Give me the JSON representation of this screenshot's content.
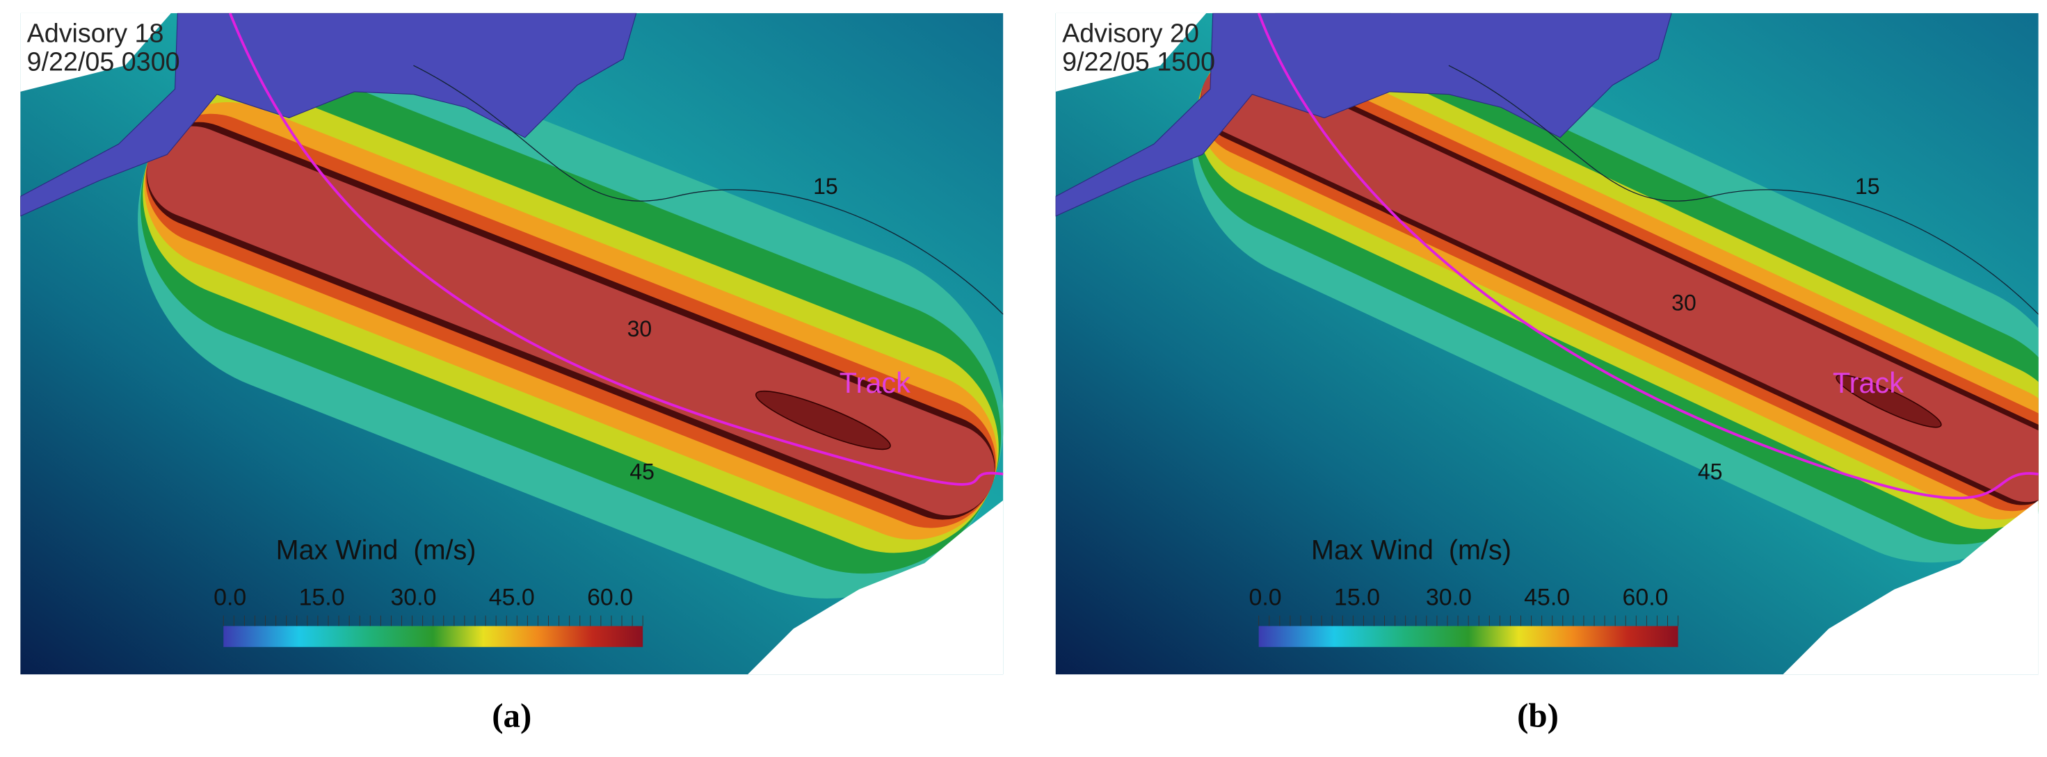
{
  "figure": {
    "panels": [
      {
        "title": "Advisory 18",
        "time": "9/22/05 0300",
        "contour_labels": [
          "15",
          "30",
          "45"
        ],
        "track_label": "Track",
        "colorbar": {
          "title": "Max Wind  (m/s)",
          "ticks": [
            "0.0",
            "15.0",
            "30.0",
            "45.0",
            "60.0"
          ]
        },
        "caption": "(a)"
      },
      {
        "title": "Advisory 20",
        "time": "9/22/05 1500",
        "contour_labels": [
          "15",
          "30",
          "45"
        ],
        "track_label": "Track",
        "colorbar": {
          "title": "Max Wind  (m/s)",
          "ticks": [
            "0.0",
            "15.0",
            "30.0",
            "45.0",
            "60.0"
          ]
        },
        "caption": "(b)"
      }
    ]
  }
}
